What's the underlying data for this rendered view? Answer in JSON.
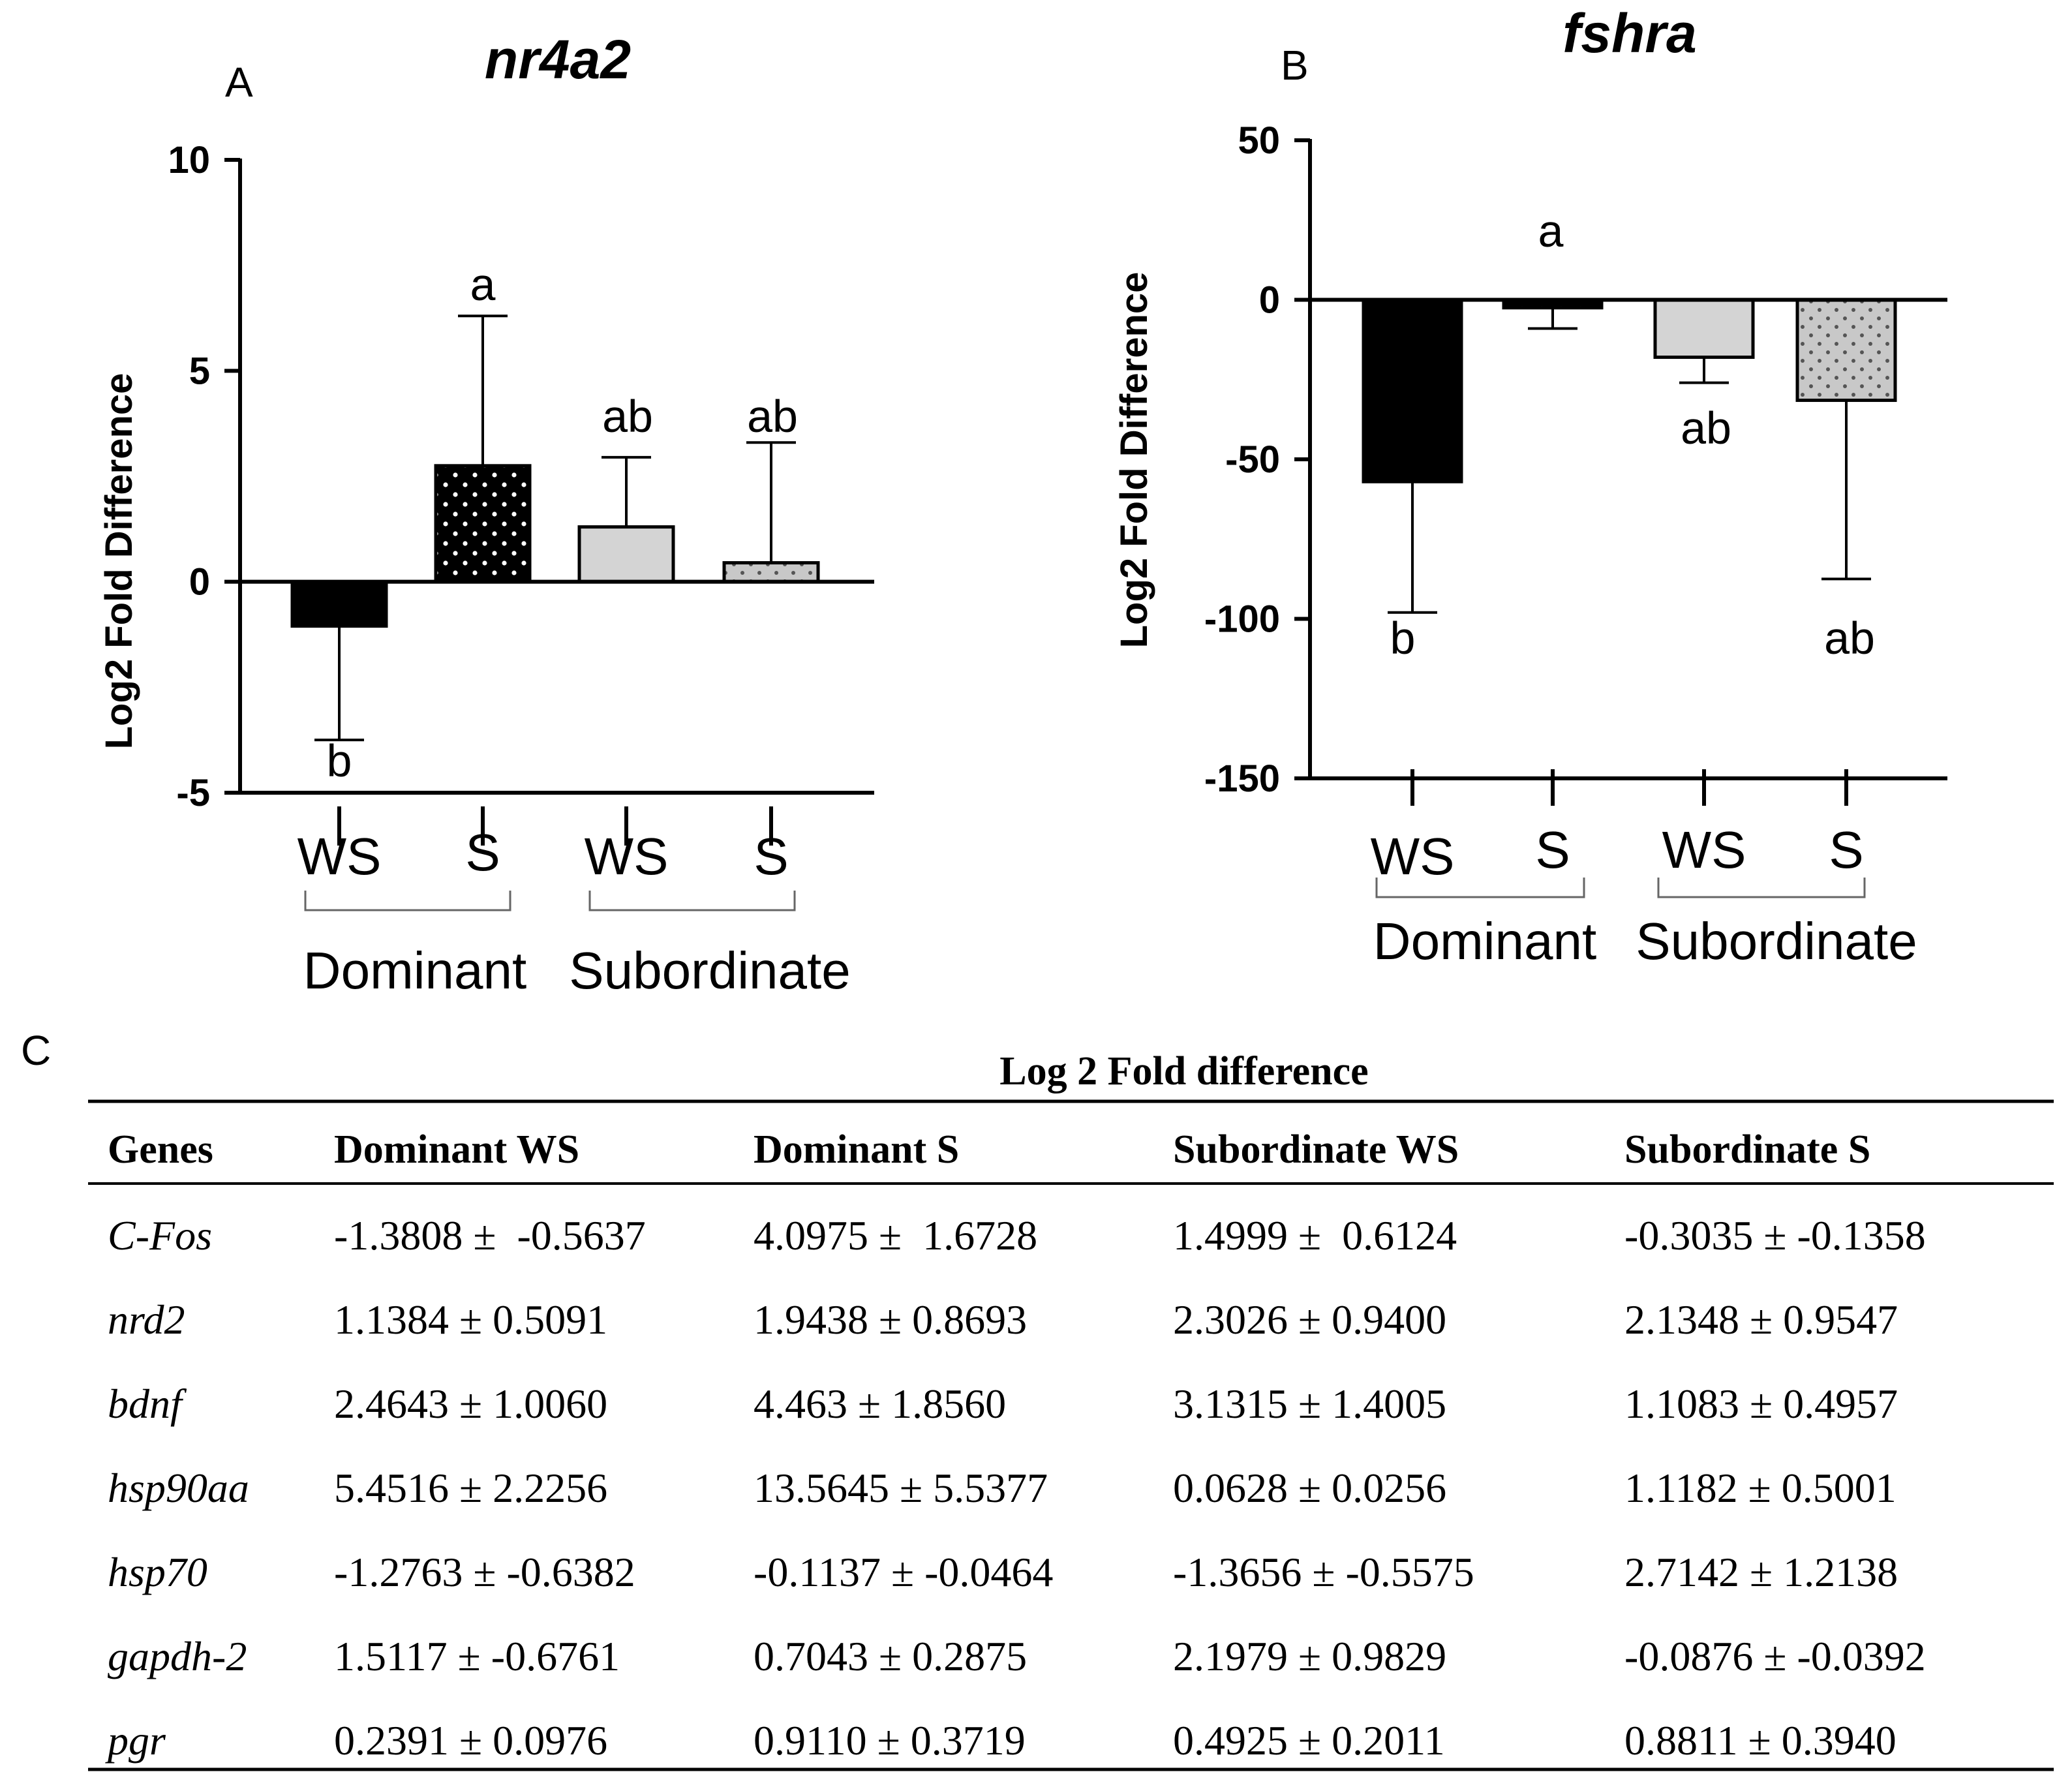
{
  "chart_data": [
    {
      "panel_label": "A",
      "type": "bar",
      "title": "nr4a2",
      "ylabel": "Log2 Fold Difference",
      "ylim": [
        -5,
        10
      ],
      "yticks": [
        -5,
        0,
        5,
        10
      ],
      "ytick_labels": [
        "-5",
        "0",
        "5",
        "10"
      ],
      "categories": [
        "WS",
        "S",
        "WS",
        "S"
      ],
      "groups": [
        "Dominant",
        "Subordinate"
      ],
      "values": [
        -1.05,
        2.75,
        1.3,
        0.45
      ],
      "errors": [
        2.7,
        3.55,
        1.65,
        2.85
      ],
      "significance": [
        "b",
        "a",
        "ab",
        "ab"
      ],
      "bar_styles": [
        "black",
        "black-dotted",
        "light-gray",
        "gray-dotted"
      ]
    },
    {
      "panel_label": "B",
      "type": "bar",
      "title": "fshra",
      "ylabel": "Log2 Fold Difference",
      "ylim": [
        -150,
        50
      ],
      "yticks": [
        -150,
        -100,
        -50,
        0,
        50
      ],
      "ytick_labels": [
        "-150",
        "-100",
        "-50",
        "0",
        "50"
      ],
      "categories": [
        "WS",
        "S",
        "WS",
        "S"
      ],
      "groups": [
        "Dominant",
        "Subordinate"
      ],
      "values": [
        -57,
        -2.5,
        -18,
        -31.5
      ],
      "errors": [
        41,
        6.5,
        8,
        56
      ],
      "significance": [
        "b",
        "a",
        "ab",
        "ab"
      ],
      "bar_styles": [
        "black",
        "black-dotted",
        "light-gray",
        "gray-dotted"
      ]
    },
    {
      "panel_label": "C",
      "type": "table",
      "title": "Log 2 Fold difference",
      "columns": [
        "Genes",
        "Dominant WS",
        "Dominant S",
        "Subordinate WS",
        "Subordinate S"
      ],
      "rows": [
        [
          "C-Fos",
          "-1.3808 ±  -0.5637",
          "4.0975 ±  1.6728",
          "1.4999 ±  0.6124",
          "-0.3035 ± -0.1358"
        ],
        [
          "nrd2",
          "1.1384 ± 0.5091",
          "1.9438 ± 0.8693",
          "2.3026 ± 0.9400",
          "2.1348 ± 0.9547"
        ],
        [
          "bdnf",
          "2.4643 ± 1.0060",
          "4.463 ± 1.8560",
          "3.1315 ± 1.4005",
          "1.1083 ± 0.4957"
        ],
        [
          "hsp90aa",
          "5.4516 ± 2.2256",
          "13.5645 ± 5.5377",
          "0.0628 ± 0.0256",
          "1.1182 ± 0.5001"
        ],
        [
          "hsp70",
          "-1.2763 ± -0.6382",
          "-0.1137 ± -0.0464",
          "-1.3656 ± -0.5575",
          "2.7142 ± 1.2138"
        ],
        [
          "gapdh-2",
          "1.5117 ± -0.6761",
          "0.7043 ± 0.2875",
          "2.1979 ± 0.9829",
          "-0.0876 ± -0.0392"
        ],
        [
          "pgr",
          "0.2391 ± 0.0976",
          "0.9110 ± 0.3719",
          "0.4925 ± 0.2011",
          "0.8811 ± 0.3940"
        ]
      ]
    }
  ],
  "colors": {
    "ink": "#000000",
    "light_gray": "#d4d4d4",
    "dotted_gray": "#c8c8c8",
    "dot_white": "#ffffff",
    "dot_dark": "#555555"
  }
}
